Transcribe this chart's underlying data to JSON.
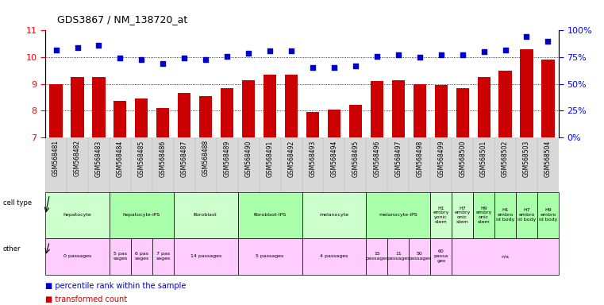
{
  "title": "GDS3867 / NM_138720_at",
  "samples": [
    "GSM568481",
    "GSM568482",
    "GSM568483",
    "GSM568484",
    "GSM568485",
    "GSM568486",
    "GSM568487",
    "GSM568488",
    "GSM568489",
    "GSM568490",
    "GSM568491",
    "GSM568492",
    "GSM568493",
    "GSM568494",
    "GSM568495",
    "GSM568496",
    "GSM568497",
    "GSM568498",
    "GSM568499",
    "GSM568500",
    "GSM568501",
    "GSM568502",
    "GSM568503",
    "GSM568504"
  ],
  "bar_values": [
    9.0,
    9.25,
    9.25,
    8.35,
    8.45,
    8.1,
    8.65,
    8.55,
    8.85,
    9.15,
    9.35,
    9.35,
    7.95,
    8.05,
    8.2,
    9.1,
    9.15,
    9.0,
    8.95,
    8.85,
    9.25,
    9.5,
    10.3,
    9.9
  ],
  "dot_values": [
    82,
    84,
    86,
    74,
    73,
    69,
    74,
    73,
    76,
    79,
    81,
    81,
    65,
    65,
    67,
    76,
    77,
    75,
    77,
    77,
    80,
    82,
    94,
    90
  ],
  "ylim_left": [
    7,
    11
  ],
  "ylim_right": [
    0,
    100
  ],
  "yticks_left": [
    7,
    8,
    9,
    10,
    11
  ],
  "yticks_right": [
    0,
    25,
    50,
    75,
    100
  ],
  "ytick_labels_right": [
    "0%",
    "25%",
    "50%",
    "75%",
    "100%"
  ],
  "bar_color": "#cc0000",
  "dot_color": "#0000cc",
  "bg_color": "#ffffff",
  "xtick_bg": "#d8d8d8",
  "cell_type_row": [
    {
      "label": "hepatocyte",
      "start": 0,
      "end": 3,
      "color": "#ccffcc"
    },
    {
      "label": "hepatocyte-iPS",
      "start": 3,
      "end": 6,
      "color": "#aaffaa"
    },
    {
      "label": "fibroblast",
      "start": 6,
      "end": 9,
      "color": "#ccffcc"
    },
    {
      "label": "fibroblast-IPS",
      "start": 9,
      "end": 12,
      "color": "#aaffaa"
    },
    {
      "label": "melanocyte",
      "start": 12,
      "end": 15,
      "color": "#ccffcc"
    },
    {
      "label": "melanocyte-iPS",
      "start": 15,
      "end": 18,
      "color": "#aaffaa"
    },
    {
      "label": "H1\nembry\nyonic\nstem",
      "start": 18,
      "end": 19,
      "color": "#ccffcc"
    },
    {
      "label": "H7\nembry\nonic\nstem",
      "start": 19,
      "end": 20,
      "color": "#ccffcc"
    },
    {
      "label": "H9\nembry\nonic\nstem",
      "start": 20,
      "end": 21,
      "color": "#aaffaa"
    },
    {
      "label": "H1\nembro\nid body",
      "start": 21,
      "end": 22,
      "color": "#aaffaa"
    },
    {
      "label": "H7\nembro\nid body",
      "start": 22,
      "end": 23,
      "color": "#aaffaa"
    },
    {
      "label": "H9\nembro\nid body",
      "start": 23,
      "end": 24,
      "color": "#aaffaa"
    }
  ],
  "other_row": [
    {
      "label": "0 passages",
      "start": 0,
      "end": 3,
      "color": "#ffccff"
    },
    {
      "label": "5 pas\nsages",
      "start": 3,
      "end": 4,
      "color": "#ffccff"
    },
    {
      "label": "6 pas\nsages",
      "start": 4,
      "end": 5,
      "color": "#ffccff"
    },
    {
      "label": "7 pas\nsages",
      "start": 5,
      "end": 6,
      "color": "#ffccff"
    },
    {
      "label": "14 passages",
      "start": 6,
      "end": 9,
      "color": "#ffccff"
    },
    {
      "label": "5 passages",
      "start": 9,
      "end": 12,
      "color": "#ffccff"
    },
    {
      "label": "4 passages",
      "start": 12,
      "end": 15,
      "color": "#ffccff"
    },
    {
      "label": "15\npassages",
      "start": 15,
      "end": 16,
      "color": "#ffccff"
    },
    {
      "label": "11\npassages",
      "start": 16,
      "end": 17,
      "color": "#ffccff"
    },
    {
      "label": "50\npassages",
      "start": 17,
      "end": 18,
      "color": "#ffccff"
    },
    {
      "label": "60\npassa\nges",
      "start": 18,
      "end": 19,
      "color": "#ffccff"
    },
    {
      "label": "n/a",
      "start": 19,
      "end": 24,
      "color": "#ffccff"
    }
  ],
  "legend_red": "transformed count",
  "legend_blue": "percentile rank within the sample"
}
